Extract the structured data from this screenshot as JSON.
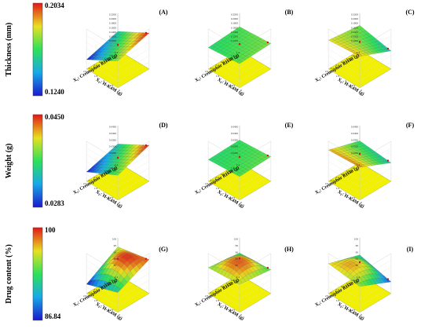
{
  "figure": {
    "rows": [
      {
        "quantity": "Thickness (mm)",
        "max_label": "0.2034",
        "min_label": "0.1240"
      },
      {
        "quantity": "Weight (g)",
        "max_label": "0.0450",
        "min_label": "0.0283"
      },
      {
        "quantity": "Drug content (%)",
        "max_label": "100",
        "min_label": "86.84"
      }
    ],
    "x1_label": "X₁: Cremophor RH40 (g)",
    "x2_label": "X₂: H-K4M (g)",
    "colors": {
      "low": "#1e1ec8",
      "mid": "#2ee05a",
      "high": "#e8251c",
      "base": "#f0f000"
    }
  },
  "chart_data": [
    {
      "panel": "(A)",
      "type": "surface",
      "response": "Thickness (mm)",
      "xlabel": "X₁: Cremophor RH40 (g)",
      "ylabel": "X₂: H-K4M (g)",
      "x_ticks": [
        "1.4",
        "1.6",
        "1.8",
        "2.0",
        "2.2",
        "2.4",
        "2.6"
      ],
      "y_ticks": [
        "1",
        "1.5",
        "2",
        "2.5",
        "3"
      ],
      "z_ticks": [
        "0.1000",
        "0.1200",
        "0.1400",
        "0.1600",
        "0.1800",
        "0.2000",
        "0.2200"
      ],
      "zlim": [
        0.124,
        0.2034
      ],
      "corners": {
        "x1_low_x2_low": 0.152,
        "x1_high_x2_low": 0.124,
        "x1_low_x2_high": 0.2034,
        "x1_high_x2_high": 0.176
      }
    },
    {
      "panel": "(B)",
      "type": "surface",
      "response": "Thickness (mm)",
      "xlabel": "X₁: Cremophor RH40 (g)",
      "ylabel": "X₂: H-K4M (g)",
      "x_ticks": [
        "1.4",
        "1.6",
        "1.8",
        "2.0",
        "2.2",
        "2.4",
        "2.6"
      ],
      "y_ticks": [
        "1",
        "1.5",
        "2",
        "2.5",
        "3"
      ],
      "z_ticks": [
        "0.1000",
        "0.1200",
        "0.1400",
        "0.1600",
        "0.1800",
        "0.2000",
        "0.2200"
      ],
      "zlim": [
        0.124,
        0.2034
      ],
      "corners": {
        "x1_low_x2_low": 0.166,
        "x1_high_x2_low": 0.16,
        "x1_low_x2_high": 0.172,
        "x1_high_x2_high": 0.168
      }
    },
    {
      "panel": "(C)",
      "type": "surface",
      "response": "Thickness (mm)",
      "xlabel": "X₁: Cremophor RH40 (g)",
      "ylabel": "X₂: H-K4M (g)",
      "x_ticks": [
        "1.4",
        "1.6",
        "1.8",
        "2.0",
        "2.2",
        "2.4",
        "2.6"
      ],
      "y_ticks": [
        "1",
        "1.5",
        "2",
        "2.5",
        "3"
      ],
      "z_ticks": [
        "0.1000",
        "0.1200",
        "0.1400",
        "0.1600",
        "0.1800",
        "0.2000",
        "0.2200"
      ],
      "zlim": [
        0.124,
        0.2034
      ],
      "corners": {
        "x1_low_x2_low": 0.17,
        "x1_high_x2_low": 0.182,
        "x1_low_x2_high": 0.15,
        "x1_high_x2_high": 0.19
      }
    },
    {
      "panel": "(D)",
      "type": "surface",
      "response": "Weight (g)",
      "xlabel": "X₁: Cremophor RH40 (g)",
      "ylabel": "X₂: H-K4M (g)",
      "x_ticks": [
        "1.4",
        "1.6",
        "1.8",
        "2.0",
        "2.2",
        "2.4",
        "2.6"
      ],
      "y_ticks": [
        "1",
        "1.5",
        "2",
        "2.5",
        "3"
      ],
      "z_ticks": [
        "0.0250",
        "0.0300",
        "0.0350",
        "0.0400",
        "0.0450"
      ],
      "zlim": [
        0.0283,
        0.045
      ],
      "corners": {
        "x1_low_x2_low": 0.034,
        "x1_high_x2_low": 0.0283,
        "x1_low_x2_high": 0.045,
        "x1_high_x2_high": 0.038
      }
    },
    {
      "panel": "(E)",
      "type": "surface",
      "response": "Weight (g)",
      "xlabel": "X₁: Cremophor RH40 (g)",
      "ylabel": "X₂: H-K4M (g)",
      "x_ticks": [
        "1.4",
        "1.6",
        "1.8",
        "2.0",
        "2.2",
        "2.4",
        "2.6"
      ],
      "y_ticks": [
        "1",
        "1.5",
        "2",
        "2.5",
        "3"
      ],
      "z_ticks": [
        "0.0250",
        "0.0300",
        "0.0350",
        "0.0400",
        "0.0450"
      ],
      "zlim": [
        0.0283,
        0.045
      ],
      "corners": {
        "x1_low_x2_low": 0.0365,
        "x1_high_x2_low": 0.036,
        "x1_low_x2_high": 0.0378,
        "x1_high_x2_high": 0.0372
      }
    },
    {
      "panel": "(F)",
      "type": "surface",
      "response": "Weight (g)",
      "xlabel": "X₁: Cremophor RH40 (g)",
      "ylabel": "X₂: H-K4M (g)",
      "x_ticks": [
        "1.4",
        "1.6",
        "1.8",
        "2.0",
        "2.2",
        "2.4",
        "2.6"
      ],
      "y_ticks": [
        "1",
        "1.5",
        "2",
        "2.5",
        "3"
      ],
      "z_ticks": [
        "0.0250",
        "0.0300",
        "0.0350",
        "0.0400",
        "0.0450"
      ],
      "zlim": [
        0.0283,
        0.045
      ],
      "corners": {
        "x1_low_x2_low": 0.036,
        "x1_high_x2_low": 0.042,
        "x1_low_x2_high": 0.034,
        "x1_high_x2_high": 0.043
      }
    },
    {
      "panel": "(G)",
      "type": "surface",
      "response": "Drug content (%)",
      "xlabel": "X₁: Cremophor RH40 (g)",
      "ylabel": "X₂: H-K4M (g)",
      "x_ticks": [
        "1.4",
        "1.6",
        "1.8",
        "2.0",
        "2.2",
        "2.4",
        "2.6"
      ],
      "y_ticks": [
        "1",
        "1.5",
        "2",
        "2.5",
        "3"
      ],
      "z_ticks": [
        "80",
        "85",
        "90",
        "95",
        "100"
      ],
      "zlim": [
        86.84,
        100
      ],
      "corners": {
        "x1_low_x2_low": 96,
        "x1_high_x2_low": 86.84,
        "x1_low_x2_high": 99,
        "x1_high_x2_high": 92
      },
      "peak": 100
    },
    {
      "panel": "(H)",
      "type": "surface",
      "response": "Drug content (%)",
      "xlabel": "X₁: Cremophor RH40 (g)",
      "ylabel": "X₂: H-K4M (g)",
      "x_ticks": [
        "1.4",
        "1.6",
        "1.8",
        "2.0",
        "2.2",
        "2.4",
        "2.6"
      ],
      "y_ticks": [
        "1",
        "1.5",
        "2",
        "2.5",
        "3"
      ],
      "z_ticks": [
        "80",
        "85",
        "90",
        "95",
        "100"
      ],
      "zlim": [
        86.84,
        100
      ],
      "corners": {
        "x1_low_x2_low": 93,
        "x1_high_x2_low": 95,
        "x1_low_x2_high": 94,
        "x1_high_x2_high": 96
      },
      "peak": 100
    },
    {
      "panel": "(I)",
      "type": "surface",
      "response": "Drug content (%)",
      "xlabel": "X₁: Cremophor RH40 (g)",
      "ylabel": "X₂: H-K4M (g)",
      "x_ticks": [
        "1.4",
        "1.6",
        "1.8",
        "2.0",
        "2.2",
        "2.4",
        "2.6"
      ],
      "y_ticks": [
        "1",
        "1.5",
        "2",
        "2.5",
        "3"
      ],
      "z_ticks": [
        "80",
        "85",
        "90",
        "95",
        "100"
      ],
      "zlim": [
        86.84,
        100
      ],
      "corners": {
        "x1_low_x2_low": 92,
        "x1_high_x2_low": 97,
        "x1_low_x2_high": 88,
        "x1_high_x2_high": 95
      },
      "peak": 98
    }
  ]
}
